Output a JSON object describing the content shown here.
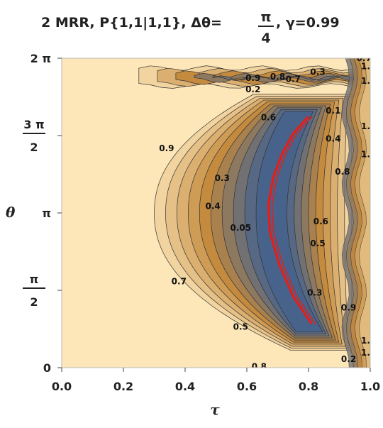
{
  "chart_data": {
    "type": "contour",
    "title": {
      "prefix": "2 MRR, P{1,1|1,1}, Δθ=",
      "frac_num": "π",
      "frac_den": "4",
      "suffix": ", γ=0.99"
    },
    "xlabel": "τ",
    "ylabel": "θ",
    "xlim": [
      0,
      1
    ],
    "ylim": [
      0,
      6.2832
    ],
    "x_ticks": [
      {
        "value": 0.0,
        "label": "0.0"
      },
      {
        "value": 0.2,
        "label": "0.2"
      },
      {
        "value": 0.4,
        "label": "0.4"
      },
      {
        "value": 0.6,
        "label": "0.6"
      },
      {
        "value": 0.8,
        "label": "0.8"
      },
      {
        "value": 1.0,
        "label": "1.0"
      }
    ],
    "y_ticks": [
      {
        "value": 0,
        "label": "0"
      },
      {
        "value": 1.5708,
        "num": "π",
        "den": "2"
      },
      {
        "value": 3.1416,
        "label": "π"
      },
      {
        "value": 4.7124,
        "num": "3 π",
        "den": "2"
      },
      {
        "value": 6.2832,
        "label": "2 π"
      }
    ],
    "contour_levels": [
      0.05,
      0.1,
      0.2,
      0.3,
      0.4,
      0.5,
      0.6,
      0.7,
      0.8,
      0.9
    ],
    "colors": {
      "low": "#3a5f94",
      "mid": "#c48a3e",
      "high": "#fde6b8",
      "line": "#333333",
      "highlight": "#e0201c"
    },
    "contour_labels": [
      {
        "text": "0.3",
        "tau": 0.83,
        "theta": 6.0
      },
      {
        "text": "0.9",
        "tau": 0.62,
        "theta": 5.88
      },
      {
        "text": "0.8",
        "tau": 0.7,
        "theta": 5.91
      },
      {
        "text": "0.7",
        "tau": 0.75,
        "theta": 5.86
      },
      {
        "text": "0.2",
        "tau": 0.62,
        "theta": 5.65
      },
      {
        "text": "0.6",
        "tau": 0.67,
        "theta": 5.08
      },
      {
        "text": "0.9",
        "tau": 0.34,
        "theta": 4.45
      },
      {
        "text": "0.3",
        "tau": 0.52,
        "theta": 3.85
      },
      {
        "text": "0.4",
        "tau": 0.49,
        "theta": 3.28
      },
      {
        "text": "0.05",
        "tau": 0.58,
        "theta": 2.84
      },
      {
        "text": "0.7",
        "tau": 0.38,
        "theta": 1.75
      },
      {
        "text": "0.5",
        "tau": 0.58,
        "theta": 0.83
      },
      {
        "text": "0.8",
        "tau": 0.64,
        "theta": 0.02
      },
      {
        "text": "0.1",
        "tau": 0.88,
        "theta": 5.22
      },
      {
        "text": "0.4",
        "tau": 0.88,
        "theta": 4.65
      },
      {
        "text": "0.8",
        "tau": 0.91,
        "theta": 3.98
      },
      {
        "text": "0.6",
        "tau": 0.84,
        "theta": 2.97
      },
      {
        "text": "0.5",
        "tau": 0.83,
        "theta": 2.52
      },
      {
        "text": "0.3",
        "tau": 0.82,
        "theta": 1.52
      },
      {
        "text": "0.9",
        "tau": 0.93,
        "theta": 1.22
      },
      {
        "text": "0.2",
        "tau": 0.93,
        "theta": 0.17
      },
      {
        "text": "0.7",
        "tau": 0.98,
        "theta": 6.28
      },
      {
        "text": "1.",
        "tau": 0.985,
        "theta": 6.12
      },
      {
        "text": "1.",
        "tau": 0.985,
        "theta": 5.82
      },
      {
        "text": "1.",
        "tau": 0.985,
        "theta": 4.9
      },
      {
        "text": "1.",
        "tau": 0.985,
        "theta": 4.33
      },
      {
        "text": "1.",
        "tau": 0.985,
        "theta": 0.55
      },
      {
        "text": "1.",
        "tau": 0.985,
        "theta": 0.3
      }
    ],
    "highlight_curve": [
      {
        "tau": 0.81,
        "theta": 0.89
      },
      {
        "tau": 0.75,
        "theta": 1.45
      },
      {
        "tau": 0.705,
        "theta": 2.1
      },
      {
        "tau": 0.675,
        "theta": 2.75
      },
      {
        "tau": 0.67,
        "theta": 3.3
      },
      {
        "tau": 0.685,
        "theta": 3.85
      },
      {
        "tau": 0.715,
        "theta": 4.35
      },
      {
        "tau": 0.75,
        "theta": 4.75
      },
      {
        "tau": 0.8,
        "theta": 5.1
      }
    ]
  }
}
